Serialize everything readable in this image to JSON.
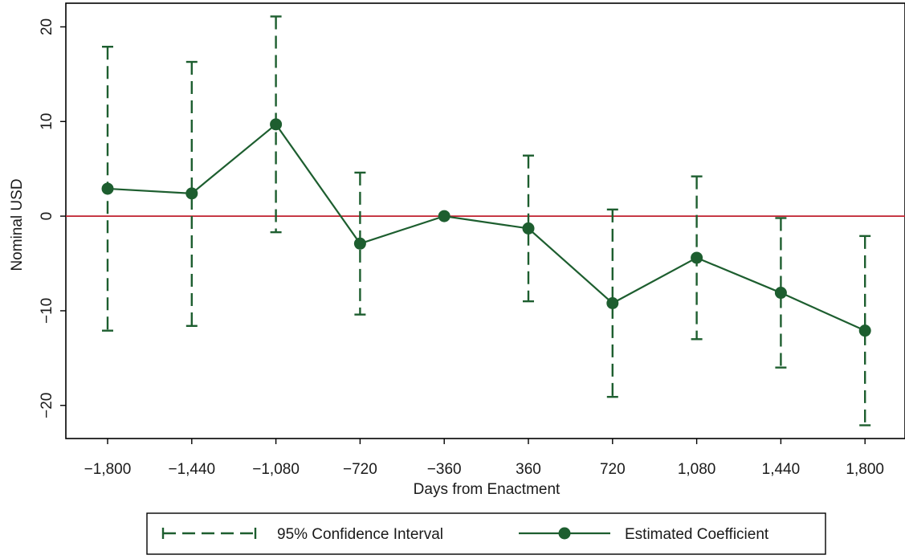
{
  "chart_data": {
    "type": "line",
    "title": "",
    "xlabel": "Days from Enactment",
    "ylabel": "Nominal USD",
    "x_categories": [
      "−1,800",
      "−1,440",
      "−1,080",
      "−720",
      "−360",
      "360",
      "720",
      "1,080",
      "1,440",
      "1,800"
    ],
    "ylim": [
      -23.5,
      22.5
    ],
    "yticks": [
      20,
      10,
      0,
      -10,
      -20
    ],
    "ytick_labels": [
      "20",
      "10",
      "0",
      "−10",
      "−20"
    ],
    "zero_line": true,
    "zero_line_color": "#c0202e",
    "series_color": "#1d5e2f",
    "series": [
      {
        "name": "Estimated Coefficient",
        "style": "solid-line-with-markers",
        "values": [
          2.9,
          2.4,
          9.7,
          -2.9,
          0.0,
          -1.3,
          -9.2,
          -4.4,
          -8.1,
          -12.1
        ]
      }
    ],
    "confidence_interval": {
      "name": "95% Confidence Interval",
      "style": "dashed-capped",
      "lower": [
        -12.1,
        -11.6,
        -1.7,
        -10.4,
        null,
        -9.0,
        -19.1,
        -13.0,
        -16.0,
        -22.1
      ],
      "upper": [
        17.9,
        16.3,
        21.1,
        4.6,
        null,
        6.4,
        0.7,
        4.2,
        -0.2,
        -2.1
      ]
    },
    "legend": {
      "position": "bottom",
      "entries": [
        "95% Confidence Interval",
        "Estimated Coefficient"
      ]
    },
    "grid": false
  }
}
